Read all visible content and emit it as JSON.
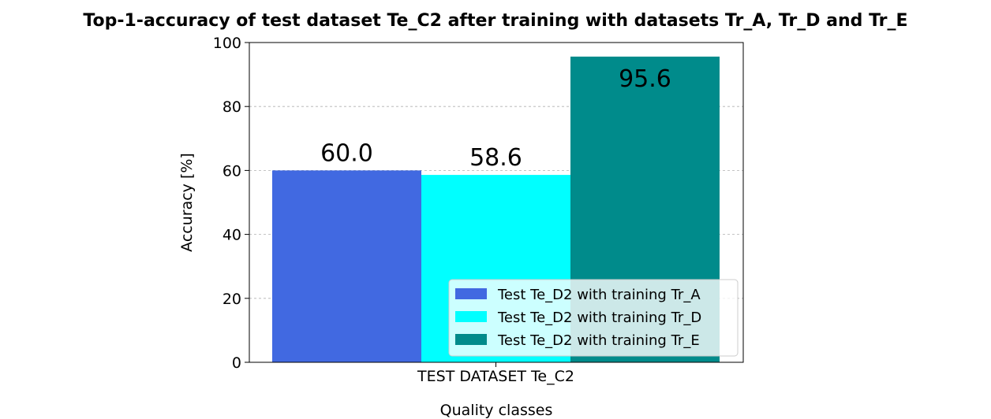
{
  "chart_data": {
    "type": "bar",
    "title": "Top-1-accuracy of test dataset Te_C2 after training with datasets Tr_A, Tr_D and Tr_E",
    "xlabel": "Quality classes",
    "ylabel": "Accuracy [%]",
    "categories": [
      "TEST DATASET Te_C2"
    ],
    "ylim": [
      0,
      100
    ],
    "yticks": [
      "0",
      "20",
      "40",
      "60",
      "80",
      "100"
    ],
    "grid": true,
    "legend_position": "lower-right",
    "series": [
      {
        "name": "Test Te_D2 with training Tr_A",
        "values": [
          60.0
        ],
        "label": "60.0",
        "color": "#4169e1"
      },
      {
        "name": "Test Te_D2 with training Tr_D",
        "values": [
          58.6
        ],
        "label": "58.6",
        "color": "#00ffff"
      },
      {
        "name": "Test Te_D2 with training Tr_E",
        "values": [
          95.6
        ],
        "label": "95.6",
        "color": "#008b8b"
      }
    ]
  }
}
